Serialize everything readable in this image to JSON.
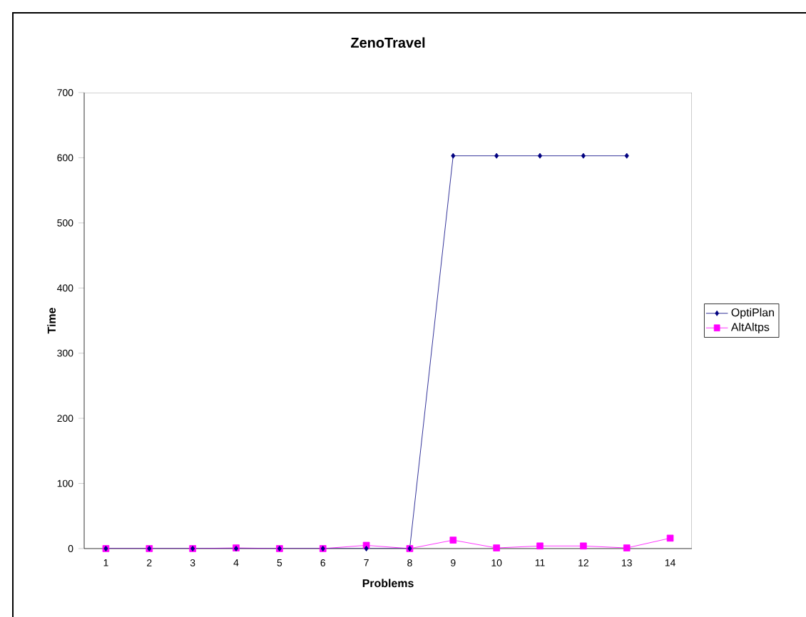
{
  "chart_data": {
    "type": "line",
    "title": "ZenoTravel",
    "xlabel": "Problems",
    "ylabel": "Time",
    "categories": [
      "1",
      "2",
      "3",
      "4",
      "5",
      "6",
      "7",
      "8",
      "9",
      "10",
      "11",
      "12",
      "13",
      "14"
    ],
    "ylim": [
      0,
      700
    ],
    "yticks": [
      0,
      100,
      200,
      300,
      400,
      500,
      600,
      700
    ],
    "series": [
      {
        "name": "OptiPlan",
        "color": "#000080",
        "marker": "diamond",
        "values": [
          0,
          0,
          0,
          0,
          0,
          0,
          0,
          0,
          603,
          603,
          603,
          603,
          603,
          null
        ]
      },
      {
        "name": "AltAltps",
        "color": "#ff00ff",
        "marker": "square",
        "values": [
          0,
          0,
          0,
          1,
          0,
          0,
          5,
          0,
          13,
          1,
          4,
          4,
          1,
          16
        ]
      }
    ],
    "legend": "right",
    "grid": false
  }
}
